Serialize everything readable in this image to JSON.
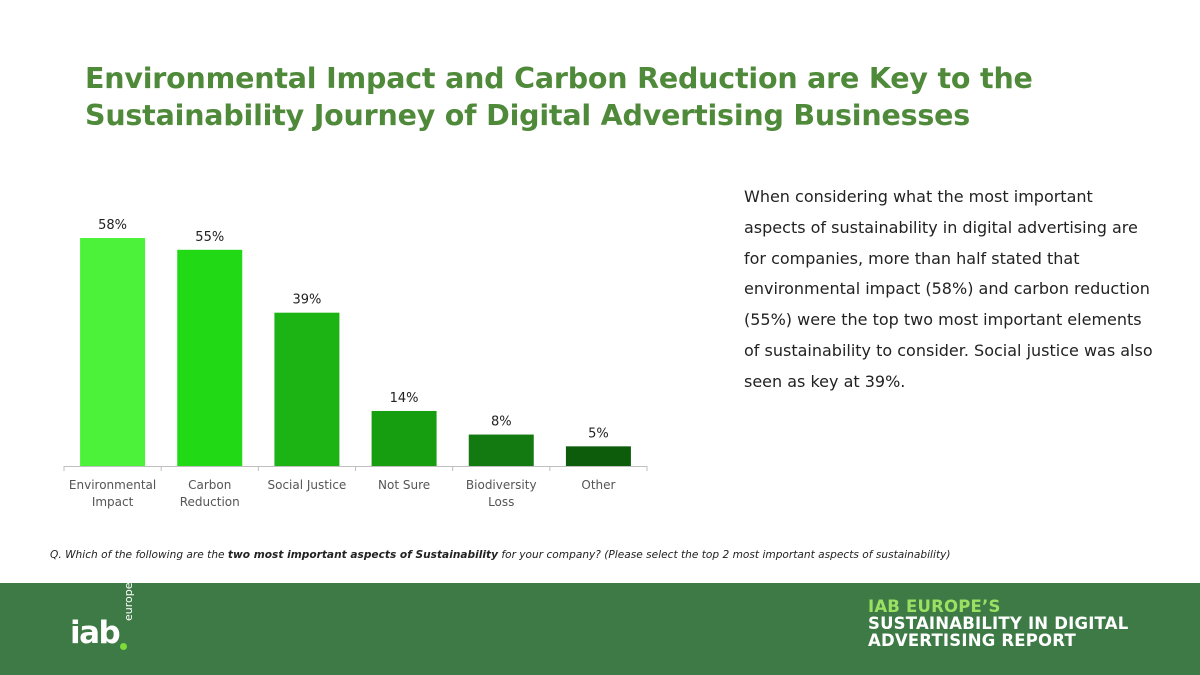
{
  "title": {
    "line1": "Environmental Impact and Carbon Reduction are Key to the",
    "line2": "Sustainability Journey of Digital Advertising Businesses"
  },
  "description": "When considering what the most important aspects of sustainability in digital advertising are for companies, more than half stated that environmental impact (58%) and carbon reduction (55%) were the top two most important elements of sustainability to consider. Social justice was also seen as key at 39%.",
  "question": {
    "prefix": "Q. Which of the following are the ",
    "bold": "two most important aspects of Sustainability",
    "suffix": " for your company? (Please select the top 2 most important aspects of sustainability)"
  },
  "footer": {
    "logo_main": "iab",
    "logo_sub": "europe",
    "report_line1": "IAB EUROPE’S",
    "report_line2": "SUSTAINABILITY IN DIGITAL",
    "report_line3": "ADVERTISING REPORT",
    "background_color": "#3d7a45"
  },
  "chart_data": {
    "type": "bar",
    "title": "",
    "xlabel": "",
    "ylabel": "",
    "ylim": [
      0,
      60
    ],
    "grid": false,
    "categories": [
      [
        "Environmental",
        "Impact"
      ],
      [
        "Carbon",
        "Reduction"
      ],
      [
        "Social Justice"
      ],
      [
        "Not Sure"
      ],
      [
        "Biodiversity",
        "Loss"
      ],
      [
        "Other"
      ]
    ],
    "values": [
      58,
      55,
      39,
      14,
      8,
      5
    ],
    "value_labels": [
      "58%",
      "55%",
      "39%",
      "14%",
      "8%",
      "5%"
    ],
    "colors": [
      "#4cf23a",
      "#22d916",
      "#1cb314",
      "#169e10",
      "#137a12",
      "#0d5c0b"
    ]
  }
}
